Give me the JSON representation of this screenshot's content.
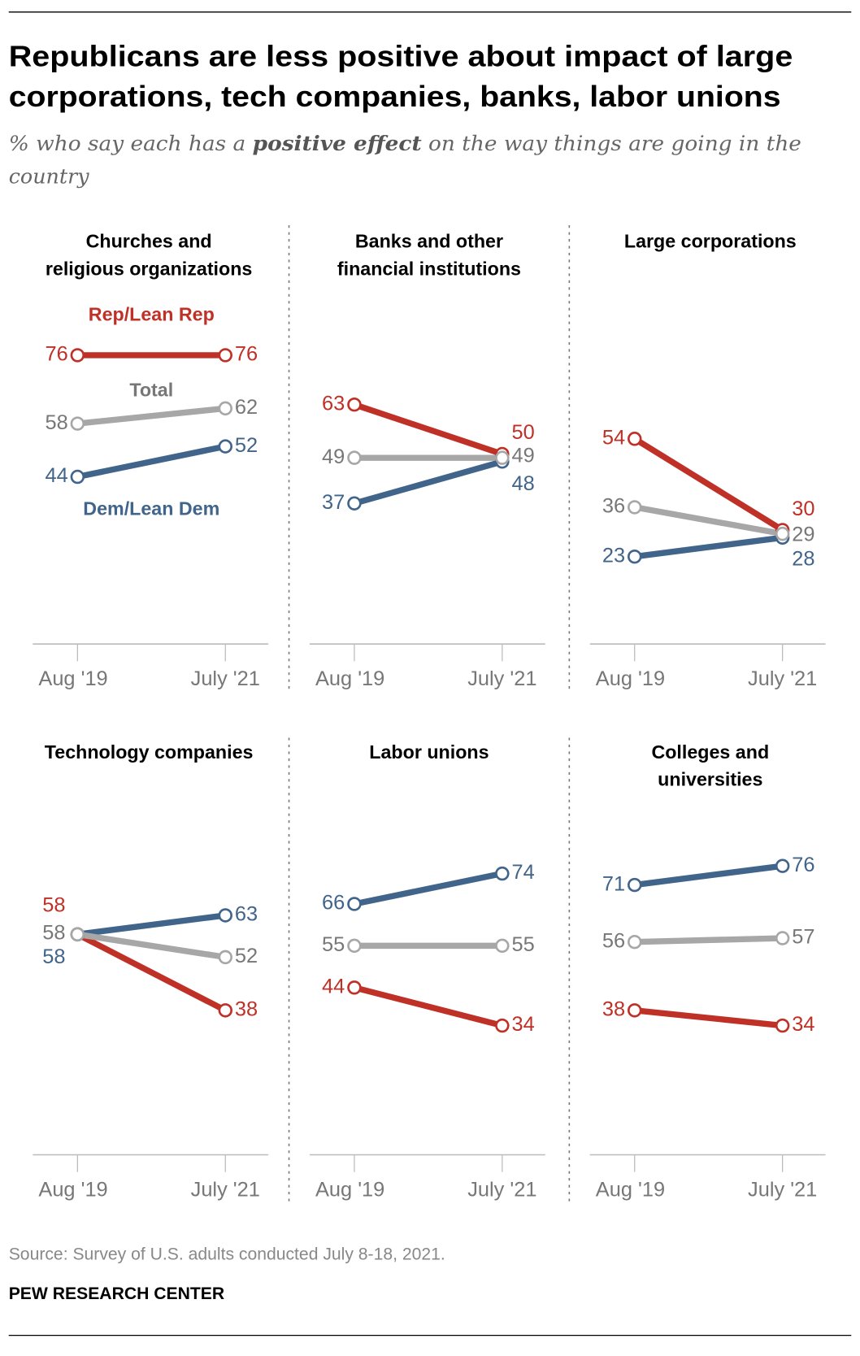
{
  "header": {
    "title_lines": [
      "Republicans are less positive about impact of large",
      "corporations, tech companies, banks, labor unions"
    ],
    "subtitle_pre": "% who say each has a ",
    "subtitle_bold": "positive effect",
    "subtitle_post": " on the way things are going in the",
    "subtitle_line2": "country"
  },
  "footer": {
    "source": "Source: Survey of U.S. adults conducted July 8-18, 2021.",
    "brand": "PEW RESEARCH CENTER"
  },
  "colors": {
    "rep": "#bf3027",
    "total": "#a7a7a7",
    "dem": "#41648a",
    "total_text": "#777777"
  },
  "chart_data": {
    "type": "line",
    "x": [
      "Aug '19",
      "July '21"
    ],
    "ylim": [
      0,
      100
    ],
    "grid": false,
    "legend": {
      "rep": "Rep/Lean Rep",
      "total": "Total",
      "dem": "Dem/Lean Dem"
    },
    "panels": [
      {
        "title_lines": [
          "Churches and",
          "religious organizations"
        ],
        "series": {
          "rep": [
            76,
            76
          ],
          "total": [
            58,
            62
          ],
          "dem": [
            44,
            52
          ]
        }
      },
      {
        "title_lines": [
          "Banks and other",
          "financial institutions"
        ],
        "series": {
          "rep": [
            63,
            50
          ],
          "total": [
            49,
            49
          ],
          "dem": [
            37,
            48
          ]
        }
      },
      {
        "title_lines": [
          "Large corporations"
        ],
        "series": {
          "rep": [
            54,
            30
          ],
          "total": [
            36,
            29
          ],
          "dem": [
            23,
            28
          ]
        }
      },
      {
        "title_lines": [
          "Technology companies"
        ],
        "series": {
          "rep": [
            58,
            38
          ],
          "total": [
            58,
            52
          ],
          "dem": [
            58,
            63
          ]
        }
      },
      {
        "title_lines": [
          "Labor unions"
        ],
        "series": {
          "rep": [
            44,
            34
          ],
          "total": [
            55,
            55
          ],
          "dem": [
            66,
            74
          ]
        }
      },
      {
        "title_lines": [
          "Colleges and",
          "universities"
        ],
        "series": {
          "rep": [
            38,
            34
          ],
          "total": [
            56,
            57
          ],
          "dem": [
            71,
            76
          ]
        }
      }
    ]
  }
}
